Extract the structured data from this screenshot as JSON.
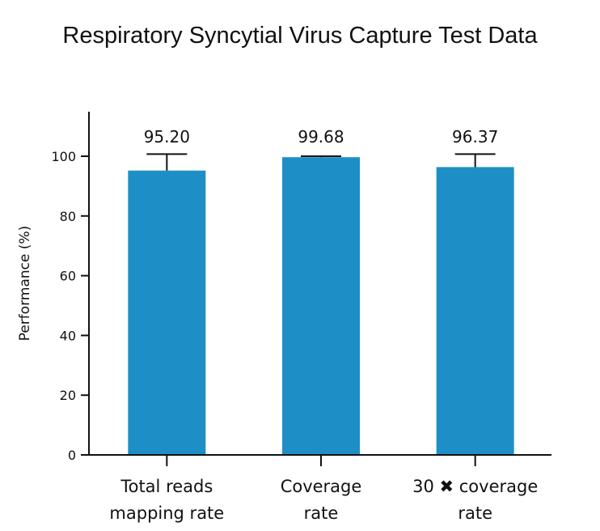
{
  "chart_data": {
    "type": "bar",
    "title": "Respiratory Syncytial Virus Capture Test Data",
    "xlabel": "",
    "ylabel": "Performance (%)",
    "ylim": [
      0,
      115
    ],
    "yticks": [
      0,
      20,
      40,
      60,
      80,
      100
    ],
    "grid": false,
    "legend": "none",
    "bar_color": "#1e8fc6",
    "axis_color": "#111111",
    "categories": [
      {
        "line1": "Total reads",
        "line2": "mapping rate"
      },
      {
        "line1": "Coverage",
        "line2": "rate"
      },
      {
        "line1": "30 ✖ coverage",
        "line2": "rate"
      }
    ],
    "values": [
      95.2,
      99.68,
      96.37
    ],
    "value_labels": [
      "95.20",
      "99.68",
      "96.37"
    ],
    "error_upper": [
      100.7,
      100.0,
      100.7
    ]
  }
}
